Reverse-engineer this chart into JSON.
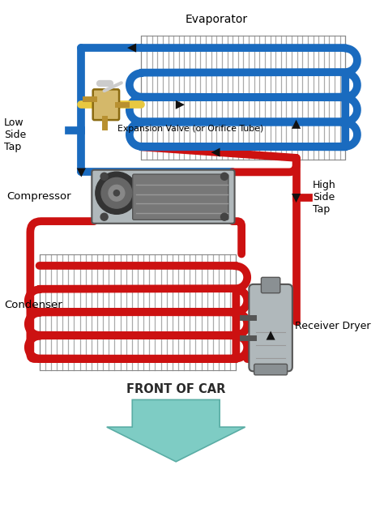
{
  "background_color": "#ffffff",
  "blue_color": "#1a6bbf",
  "red_color": "#cc1111",
  "yellow_color": "#e8c840",
  "gray_light": "#b0b8bb",
  "gray_med": "#8a9093",
  "gray_dark": "#555555",
  "arrow_color": "#111111",
  "teal_color": "#7eccc4",
  "teal_edge": "#5aada5",
  "fin_color": "#aaaaaa",
  "labels": {
    "evaporator": "Evaporator",
    "expansion_valve": "Expansion Valve (or Orifice Tube)",
    "low_side_tap": "Low\nSide\nTap",
    "compressor": "Compressor",
    "condenser": "Condenser",
    "high_side_tap": "High\nSide\nTap",
    "receiver_dryer": "Receiver Dryer",
    "front_of_car": "FRONT OF CAR"
  },
  "figsize": [
    4.74,
    6.32
  ],
  "dpi": 100
}
